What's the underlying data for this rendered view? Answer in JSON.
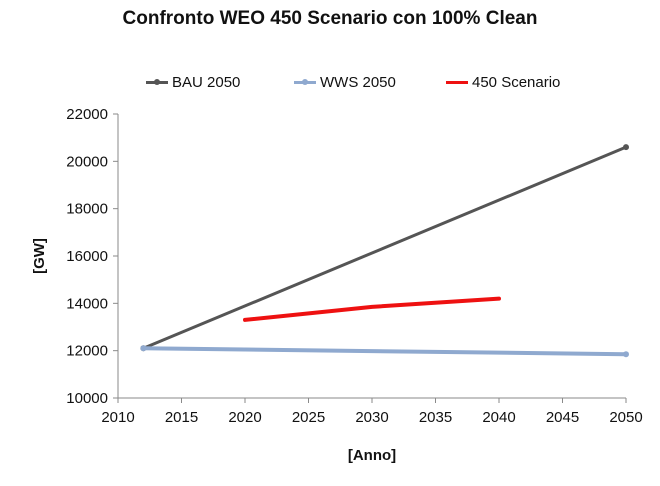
{
  "chart_data": {
    "type": "line",
    "title": "Confronto WEO 450 Scenario con 100% Clean",
    "xlabel": "[Anno]",
    "ylabel": "[GW]",
    "xlim": [
      2010,
      2050
    ],
    "ylim": [
      10000,
      22000
    ],
    "x_ticks": [
      2010,
      2015,
      2020,
      2025,
      2030,
      2035,
      2040,
      2045,
      2050
    ],
    "y_ticks": [
      10000,
      12000,
      14000,
      16000,
      18000,
      20000,
      22000
    ],
    "grid": false,
    "legend_position": "top",
    "series": [
      {
        "name": "BAU 2050",
        "color": "#555555",
        "marker": true,
        "points": [
          [
            2012,
            12100
          ],
          [
            2050,
            20600
          ]
        ]
      },
      {
        "name": "WWS 2050",
        "color": "#8fa9cf",
        "marker": true,
        "points": [
          [
            2012,
            12100
          ],
          [
            2050,
            11850
          ]
        ]
      },
      {
        "name": "450 Scenario",
        "color": "#ee1111",
        "marker": false,
        "points": [
          [
            2020,
            13300
          ],
          [
            2030,
            13850
          ],
          [
            2040,
            14200
          ]
        ]
      }
    ]
  }
}
